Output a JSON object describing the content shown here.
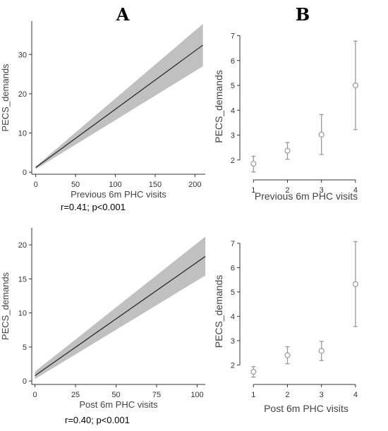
{
  "panel_labels": {
    "a": "A",
    "b": "B"
  },
  "chart_data": [
    {
      "id": "A1",
      "type": "line",
      "xlabel": "Previous 6m PHC visits",
      "ylabel": "PECS_demands",
      "xlim": [
        -5,
        213
      ],
      "ylim": [
        -0.5,
        38.5
      ],
      "xticks": [
        0,
        50,
        100,
        150,
        200
      ],
      "yticks": [
        0,
        10,
        20,
        30
      ],
      "fit_line": {
        "x": [
          0,
          210
        ],
        "y": [
          1.2,
          32.4
        ]
      },
      "confidence_band": {
        "x": [
          0,
          210
        ],
        "lower": [
          0.8,
          27.0
        ],
        "upper": [
          1.5,
          37.8
        ]
      },
      "annotation": "r=0.41; p<0.001"
    },
    {
      "id": "B1",
      "type": "scatter",
      "xlabel": "Previous 6m PHC visits",
      "ylabel": "PECS_demands",
      "xlim": [
        0.6,
        4.5
      ],
      "ylim": [
        1.2,
        7.1
      ],
      "xticks": [
        1,
        2,
        3,
        4
      ],
      "yticks": [
        2,
        3,
        4,
        5,
        6,
        7
      ],
      "points": [
        {
          "x": 1,
          "y": 1.85,
          "lower": 1.52,
          "upper": 2.15
        },
        {
          "x": 2,
          "y": 2.37,
          "lower": 2.03,
          "upper": 2.7
        },
        {
          "x": 3,
          "y": 3.02,
          "lower": 2.22,
          "upper": 3.83
        },
        {
          "x": 4,
          "y": 5.0,
          "lower": 3.22,
          "upper": 6.78
        }
      ]
    },
    {
      "id": "A2",
      "type": "line",
      "xlabel": "Post 6m PHC visits",
      "ylabel": "PECS_demands",
      "xlim": [
        -2,
        105
      ],
      "ylim": [
        -0.5,
        22.5
      ],
      "xticks": [
        0,
        25,
        50,
        75,
        100
      ],
      "yticks": [
        0,
        5,
        10,
        15,
        20
      ],
      "fit_line": {
        "x": [
          0,
          105
        ],
        "y": [
          0.8,
          18.3
        ]
      },
      "confidence_band": {
        "x": [
          0,
          105
        ],
        "lower": [
          0.3,
          15.5
        ],
        "upper": [
          1.4,
          21.2
        ]
      },
      "annotation": "r=0.40; p<0.001"
    },
    {
      "id": "B2",
      "type": "scatter",
      "xlabel": "Post 6m PHC visits",
      "ylabel": "PECS_demands",
      "xlim": [
        0.6,
        4.5
      ],
      "ylim": [
        1.2,
        7.2
      ],
      "xticks": [
        1,
        2,
        3,
        4
      ],
      "yticks": [
        2,
        3,
        4,
        5,
        6,
        7
      ],
      "points": [
        {
          "x": 1,
          "y": 1.72,
          "lower": 1.5,
          "upper": 1.93
        },
        {
          "x": 2,
          "y": 2.4,
          "lower": 2.05,
          "upper": 2.75
        },
        {
          "x": 3,
          "y": 2.58,
          "lower": 2.18,
          "upper": 2.97
        },
        {
          "x": 4,
          "y": 5.32,
          "lower": 3.58,
          "upper": 7.07
        }
      ]
    }
  ]
}
